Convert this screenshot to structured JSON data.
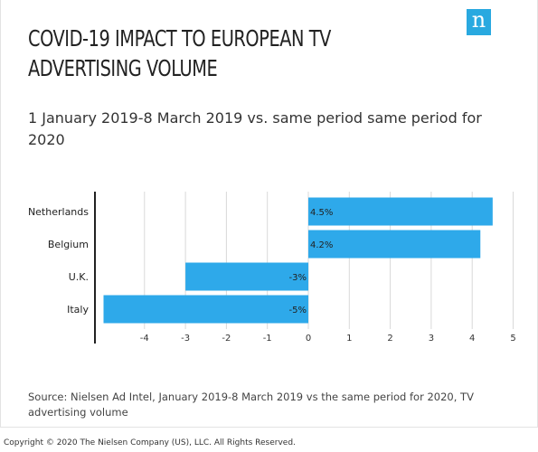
{
  "header": {
    "title": "COVID-19 IMPACT TO EUROPEAN TV ADVERTISING VOLUME",
    "subtitle": "1 January 2019-8 March 2019 vs. same period same period for 2020",
    "logo_glyph": "n",
    "logo_color": "#29a9e0"
  },
  "chart_data": {
    "type": "bar",
    "orientation": "horizontal",
    "categories": [
      "Netherlands",
      "Belgium",
      "U.K.",
      "Italy"
    ],
    "values": [
      4.5,
      4.2,
      -3,
      -5
    ],
    "data_labels": [
      "4.5%",
      "4.2%",
      "-3%",
      "-5%"
    ],
    "x_ticks": [
      "-4",
      "-3",
      "-2",
      "-1",
      "0",
      "1",
      "2",
      "3",
      "4",
      "5"
    ],
    "xlim": [
      -5,
      5
    ],
    "grid": true,
    "bar_color": "#2ea9ea"
  },
  "footer": {
    "source": "Source: Nielsen Ad Intel, January 2019-8 March 2019 vs the same period for 2020, TV advertising volume",
    "copyright": "Copyright © 2020 The Nielsen Company (US), LLC. All Rights Reserved."
  }
}
